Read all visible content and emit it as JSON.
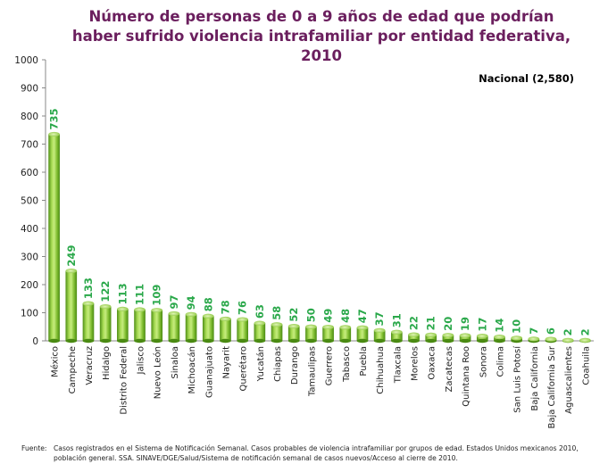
{
  "title": {
    "line1": "Número de personas de 0 a 9 años de edad que podrían",
    "line2": "haber sufrido violencia intrafamiliar por entidad federativa,",
    "line3": "2010"
  },
  "annotation": "Nacional (2,580)",
  "footer": {
    "label": "Fuente:",
    "line1": "Casos registrados en el Sistema de Notificación Semanal. Casos probables de violencia intrafamiliar por grupos de edad. Estados Unidos mexicanos 2010,",
    "line2": "población general. SSA. SINAVE/DGE/Salud/Sistema de notificación semanal de casos nuevos/Acceso al cierre de 2010."
  },
  "colors": {
    "bar": "#8cc63f",
    "bar_dark": "#4a8a12",
    "bar_light": "#d8f0a0",
    "label": "#2aa84a",
    "title": "#6b1f5e"
  },
  "chart_data": {
    "type": "bar",
    "title": "Número de personas de 0 a 9 años de edad que podrían haber sufrido violencia intrafamiliar por entidad federativa, 2010",
    "categories": [
      "México",
      "Campeche",
      "Veracruz",
      "Hidalgo",
      "Distrito Federal",
      "Jalisco",
      "Nuevo León",
      "Sinaloa",
      "Michoacán",
      "Guanajuato",
      "Nayarit",
      "Querétaro",
      "Yucatán",
      "Chiapas",
      "Durango",
      "Tamaulipas",
      "Guerrero",
      "Tabasco",
      "Puebla",
      "Chihuahua",
      "Tlaxcala",
      "Morelos",
      "Oaxaca",
      "Zacatecas",
      "Quintana Roo",
      "Sonora",
      "Colima",
      "San Luis Potosí",
      "Baja California",
      "Baja California Sur",
      "Aguascalientes",
      "Coahuila"
    ],
    "values": [
      735,
      249,
      133,
      122,
      113,
      111,
      109,
      97,
      94,
      88,
      78,
      76,
      63,
      58,
      52,
      50,
      49,
      48,
      47,
      37,
      31,
      22,
      21,
      20,
      19,
      17,
      14,
      10,
      7,
      6,
      2,
      2
    ],
    "yticks": [
      "0",
      "100",
      "200",
      "300",
      "400",
      "500",
      "600",
      "700",
      "800",
      "900",
      "1000"
    ],
    "ylim": [
      0,
      1000
    ],
    "legend": "none",
    "grid": false
  }
}
